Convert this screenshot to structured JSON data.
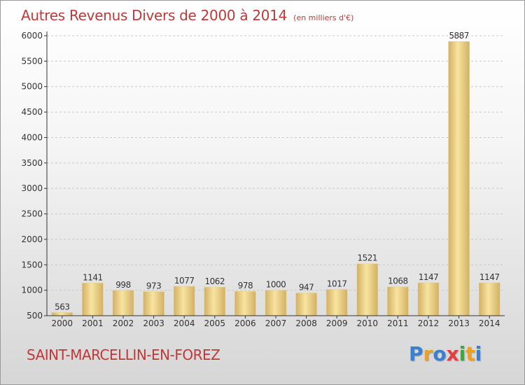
{
  "chart_data": {
    "type": "bar",
    "title": "Autres Revenus Divers de 2000 à 2014",
    "subtitle": "(en milliers d'€)",
    "categories": [
      "2000",
      "2001",
      "2002",
      "2003",
      "2004",
      "2005",
      "2006",
      "2007",
      "2008",
      "2009",
      "2010",
      "2011",
      "2012",
      "2013",
      "2014"
    ],
    "values": [
      563,
      1141,
      998,
      973,
      1077,
      1062,
      978,
      1000,
      947,
      1017,
      1521,
      1068,
      1147,
      5887,
      1147
    ],
    "ylim": [
      500,
      6000
    ],
    "yticks": [
      500,
      1000,
      1500,
      2000,
      2500,
      3000,
      3500,
      4000,
      4500,
      5000,
      5500,
      6000
    ],
    "grid": true,
    "colors": {
      "bar_light": "#f8e4a0",
      "bar_dark": "#d2b064",
      "title": "#c03838",
      "axis": "#333333"
    }
  },
  "footer": {
    "commune": "SAINT-MARCELLIN-EN-FOREZ"
  },
  "brand": {
    "letters": [
      "P",
      "r",
      "o",
      "x",
      "i",
      "t",
      "i"
    ],
    "colors": [
      "#3a7fd0",
      "#f0a020",
      "#3a7fd0",
      "#e04040",
      "#40a840",
      "#f0a020",
      "#3a7fd0"
    ]
  }
}
